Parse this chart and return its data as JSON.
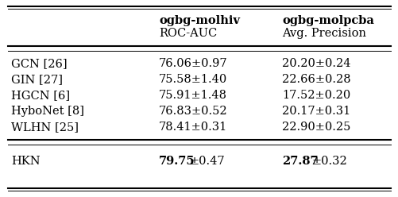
{
  "col_headers_line1": [
    "",
    "ogbg-molhiv",
    "ogbg-molpcba"
  ],
  "col_headers_line2": [
    "",
    "ROC-AUC",
    "Avg. Precision"
  ],
  "rows": [
    [
      "GCN [26]",
      "76.06±0.97",
      "20.20±0.24"
    ],
    [
      "GIN [27]",
      "75.58±1.40",
      "22.66±0.28"
    ],
    [
      "HGCN [6]",
      "75.91±1.48",
      "17.52±0.20"
    ],
    [
      "HyboNet [8]",
      "76.83±0.52",
      "20.17±0.31"
    ],
    [
      "WLHN [25]",
      "78.41±0.31",
      "22.90±0.25"
    ]
  ],
  "last_row_method": "HKN",
  "last_row_c1_bold": "79.75",
  "last_row_c1_normal": "±0.47",
  "last_row_c2_bold": "27.87",
  "last_row_c2_normal": "±0.32",
  "bg_color": "#ffffff",
  "text_color": "#000000",
  "header_fontsize": 10.5,
  "body_fontsize": 10.5,
  "figsize": [
    5.02,
    2.48
  ],
  "dpi": 100
}
